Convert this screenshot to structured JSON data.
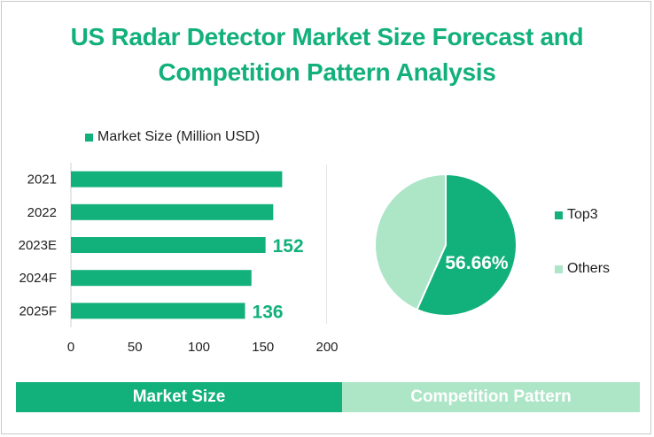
{
  "title_line1": "US Radar Detector Market Size Forecast and",
  "title_line2": "Competition Pattern Analysis",
  "colors": {
    "primary": "#12b07a",
    "light": "#ade5c7"
  },
  "chart_data": [
    {
      "type": "bar",
      "orientation": "horizontal",
      "categories": [
        "2021",
        "2022",
        "2023E",
        "2024F",
        "2025F"
      ],
      "series": [
        {
          "name": "Market Size (Million USD)",
          "values": [
            165,
            158,
            152,
            141,
            136
          ]
        }
      ],
      "data_labels": {
        "2023E": "152",
        "2025F": "136"
      },
      "xlim": [
        0,
        200
      ],
      "xticks": [
        "0",
        "50",
        "100",
        "150",
        "200"
      ],
      "legend": "top-left"
    },
    {
      "type": "pie",
      "slices": [
        {
          "label": "Top3",
          "value": 56.66
        },
        {
          "label": "Others",
          "value": 43.34
        }
      ],
      "data_label": "56.66%",
      "legend": "right"
    }
  ],
  "footer": {
    "left": "Market Size",
    "right": "Competition Pattern"
  }
}
